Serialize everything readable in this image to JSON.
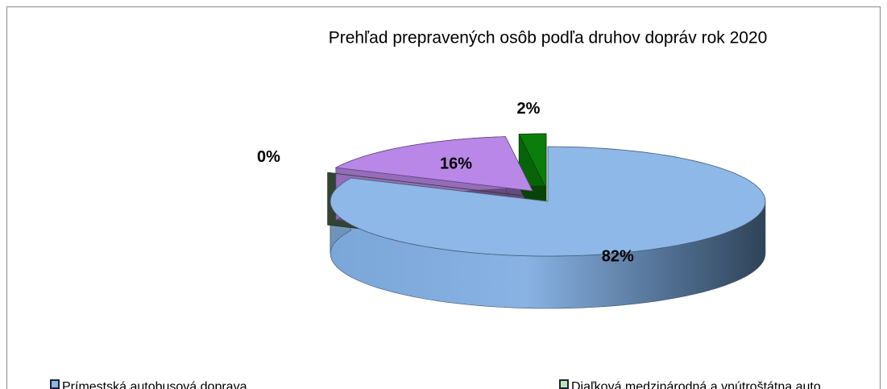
{
  "chart_data": {
    "type": "pie3d",
    "title": "Prehľad prepravených osôb podľa druhov dopráv rok 2020",
    "categories": [
      "Prímestská autobusová doprava",
      "Diaľková medzinárodná a vnútroštátna auto",
      null,
      null
    ],
    "values": [
      82,
      0,
      16,
      2
    ],
    "value_labels": [
      "82%",
      "0%",
      "16%",
      "2%"
    ],
    "colors": [
      "#8db8e8",
      "#5a7a5a",
      "#b987e8",
      "#0b7d0b"
    ],
    "legend": "bottom"
  }
}
